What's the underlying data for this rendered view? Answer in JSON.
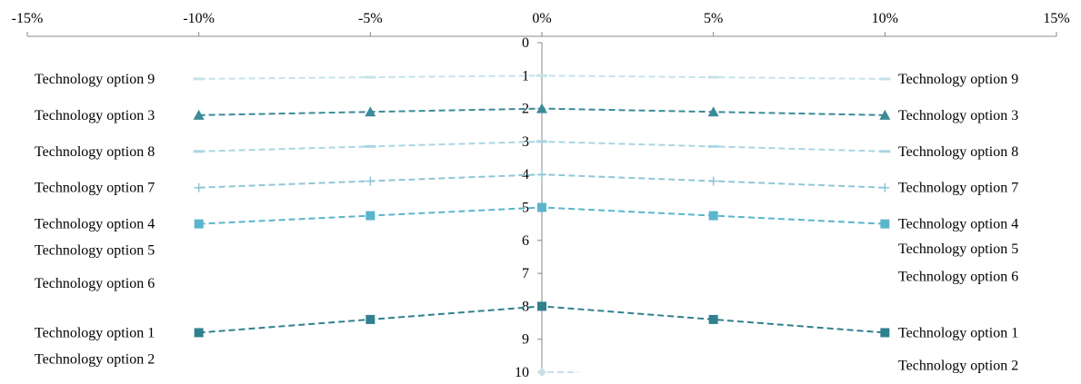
{
  "chart_data": {
    "type": "line",
    "x_axis": {
      "position": "top",
      "range": [
        -15,
        15
      ],
      "ticks": [
        -15,
        -10,
        -5,
        0,
        5,
        10,
        15
      ],
      "tick_labels": [
        "-15%",
        "-10%",
        "-5%",
        "0%",
        "5%",
        "10%",
        "15%"
      ]
    },
    "y_axis": {
      "position": "center",
      "range": [
        0,
        10
      ],
      "inverted": true,
      "ticks": [
        0,
        1,
        2,
        3,
        4,
        5,
        6,
        7,
        8,
        9,
        10
      ],
      "tick_labels": [
        "0",
        "1",
        "2",
        "3",
        "4",
        "5",
        "6",
        "7",
        "8",
        "9",
        "10"
      ]
    },
    "grid": false,
    "x": [
      -10,
      -5,
      0,
      5,
      10
    ],
    "series": [
      {
        "name": "Technology option 9",
        "values": [
          1.1,
          1.05,
          1.0,
          1.05,
          1.1
        ],
        "marker": "dash",
        "color": "#c5e3ea"
      },
      {
        "name": "Technology option 3",
        "values": [
          2.2,
          2.1,
          2.0,
          2.1,
          2.2
        ],
        "marker": "triangle",
        "color": "#3b8b99"
      },
      {
        "name": "Technology option 8",
        "values": [
          3.3,
          3.15,
          3.0,
          3.15,
          3.3
        ],
        "marker": "dash",
        "color": "#a9d6e2"
      },
      {
        "name": "Technology option 7",
        "values": [
          4.4,
          4.2,
          4.0,
          4.2,
          4.4
        ],
        "marker": "plus",
        "color": "#8fc6d6"
      },
      {
        "name": "Technology option 4",
        "values": [
          5.5,
          5.25,
          5.0,
          5.25,
          5.5
        ],
        "marker": "square",
        "color": "#5bb5cc"
      },
      {
        "name": "Technology option 1",
        "values": [
          8.8,
          8.4,
          8.0,
          8.4,
          8.8
        ],
        "marker": "square",
        "color": "#31808f"
      },
      {
        "name": "Technology option 2",
        "values": [
          null,
          null,
          10.0,
          null,
          null
        ],
        "marker": "diamond",
        "color": "#c8dfe6"
      }
    ],
    "left_labels": [
      {
        "text": "Technology option 9",
        "y": 1.1
      },
      {
        "text": "Technology option 3",
        "y": 2.2
      },
      {
        "text": "Technology option 8",
        "y": 3.3
      },
      {
        "text": "Technology option 7",
        "y": 4.4
      },
      {
        "text": "Technology option 4",
        "y": 5.5
      },
      {
        "text": "Technology option 5",
        "y": 6.3
      },
      {
        "text": "Technology option 6",
        "y": 7.3
      },
      {
        "text": "Technology option 1",
        "y": 8.8
      },
      {
        "text": "Technology option 2",
        "y": 9.6
      }
    ],
    "right_labels": [
      {
        "text": "Technology option 9",
        "y": 1.1
      },
      {
        "text": "Technology option 3",
        "y": 2.2
      },
      {
        "text": "Technology option 8",
        "y": 3.3
      },
      {
        "text": "Technology option 7",
        "y": 4.4
      },
      {
        "text": "Technology option 4",
        "y": 5.5
      },
      {
        "text": "Technology option 5",
        "y": 6.25
      },
      {
        "text": "Technology option 6",
        "y": 7.1
      },
      {
        "text": "Technology option 1",
        "y": 8.8
      },
      {
        "text": "Technology option 2",
        "y": 9.8
      }
    ]
  }
}
